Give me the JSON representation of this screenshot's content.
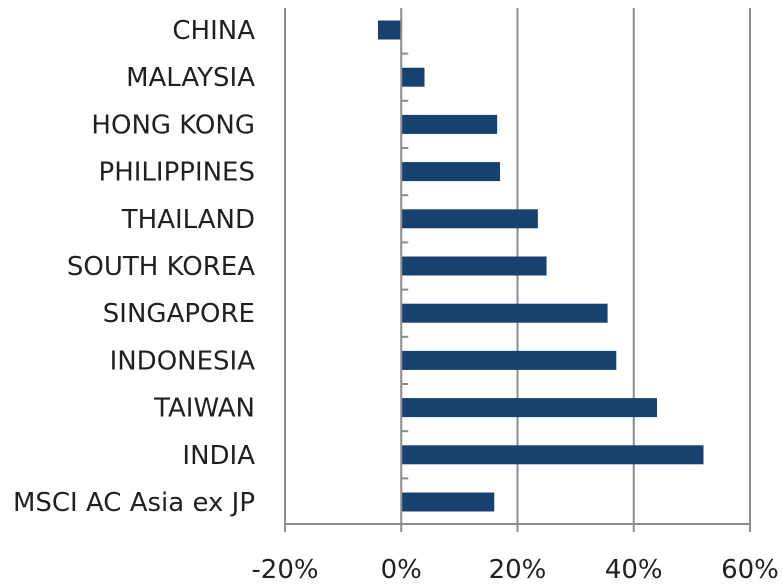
{
  "chart_data": {
    "type": "bar",
    "orientation": "horizontal",
    "categories": [
      "CHINA",
      "MALAYSIA",
      "HONG KONG",
      "PHILIPPINES",
      "THAILAND",
      "SOUTH KOREA",
      "SINGAPORE",
      "INDONESIA",
      "TAIWAN",
      "INDIA",
      "MSCI AC Asia ex JP"
    ],
    "values": [
      -4,
      4,
      16.5,
      17,
      23.5,
      25,
      35.5,
      37,
      44,
      52,
      16
    ],
    "xlim": [
      -20,
      60
    ],
    "xticks": [
      -20,
      0,
      20,
      40,
      60
    ],
    "xtick_labels": [
      "-20%",
      "0%",
      "20%",
      "40%",
      "60%"
    ],
    "grid": "vertical",
    "legend": "none",
    "colors": {
      "bar": "#17426f",
      "grid": "#8c8c8c",
      "axis": "#8c8c8c",
      "text": "#231f20"
    }
  }
}
